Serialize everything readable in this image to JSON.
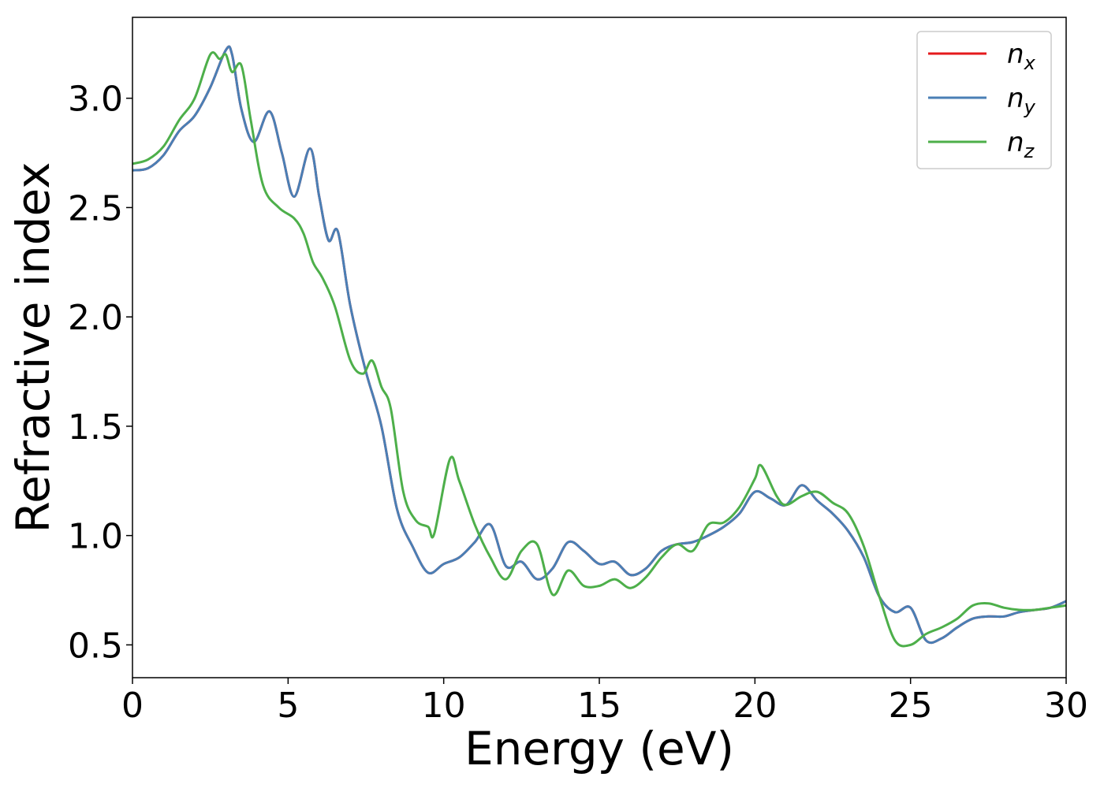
{
  "chart_data": {
    "type": "line",
    "xlabel": "Energy (eV)",
    "ylabel": "Refractive index",
    "xlim": [
      0,
      30
    ],
    "ylim": [
      0.35,
      3.37
    ],
    "xticks": [
      0,
      5,
      10,
      15,
      20,
      25,
      30
    ],
    "xtick_labels": [
      "0",
      "5",
      "10",
      "15",
      "20",
      "25",
      "30"
    ],
    "yticks": [
      0.5,
      1.0,
      1.5,
      2.0,
      2.5,
      3.0
    ],
    "ytick_labels": [
      "0.5",
      "1.0",
      "1.5",
      "2.0",
      "2.5",
      "3.0"
    ],
    "grid": false,
    "legend_position": "top-right",
    "series": [
      {
        "name": "n_x",
        "legend_base": "n",
        "legend_sub": "x",
        "color": "#e41a1c",
        "x": [
          0,
          0.5,
          1,
          1.5,
          2,
          2.5,
          3,
          3.2,
          3.5,
          3.9,
          4.4,
          4.8,
          5.2,
          5.7,
          6,
          6.3,
          6.6,
          7,
          7.5,
          8,
          8.5,
          9,
          9.5,
          10,
          10.5,
          11,
          11.5,
          12,
          12.5,
          13,
          13.5,
          14,
          14.5,
          15,
          15.5,
          16,
          16.5,
          17,
          17.5,
          18,
          18.5,
          19,
          19.5,
          20,
          20.5,
          21,
          21.5,
          22,
          22.5,
          23,
          23.5,
          24,
          24.5,
          25,
          25.5,
          26,
          26.5,
          27,
          27.5,
          28,
          28.5,
          29,
          29.5,
          30
        ],
        "y": [
          2.67,
          2.68,
          2.74,
          2.85,
          2.92,
          3.05,
          3.22,
          3.2,
          2.95,
          2.8,
          2.94,
          2.75,
          2.55,
          2.77,
          2.55,
          2.35,
          2.39,
          2.05,
          1.75,
          1.5,
          1.12,
          0.95,
          0.83,
          0.87,
          0.9,
          0.97,
          1.05,
          0.86,
          0.88,
          0.8,
          0.85,
          0.97,
          0.93,
          0.87,
          0.88,
          0.82,
          0.85,
          0.93,
          0.96,
          0.97,
          1.0,
          1.04,
          1.1,
          1.2,
          1.17,
          1.14,
          1.23,
          1.16,
          1.1,
          1.02,
          0.9,
          0.72,
          0.65,
          0.67,
          0.52,
          0.53,
          0.58,
          0.62,
          0.63,
          0.63,
          0.65,
          0.66,
          0.67,
          0.7
        ]
      },
      {
        "name": "n_y",
        "legend_base": "n",
        "legend_sub": "y",
        "color": "#4a7fb5",
        "x": [
          0,
          0.5,
          1,
          1.5,
          2,
          2.5,
          3,
          3.2,
          3.5,
          3.9,
          4.4,
          4.8,
          5.2,
          5.7,
          6,
          6.3,
          6.6,
          7,
          7.5,
          8,
          8.5,
          9,
          9.5,
          10,
          10.5,
          11,
          11.5,
          12,
          12.5,
          13,
          13.5,
          14,
          14.5,
          15,
          15.5,
          16,
          16.5,
          17,
          17.5,
          18,
          18.5,
          19,
          19.5,
          20,
          20.5,
          21,
          21.5,
          22,
          22.5,
          23,
          23.5,
          24,
          24.5,
          25,
          25.5,
          26,
          26.5,
          27,
          27.5,
          28,
          28.5,
          29,
          29.5,
          30
        ],
        "y": [
          2.67,
          2.68,
          2.74,
          2.85,
          2.92,
          3.05,
          3.22,
          3.2,
          2.95,
          2.8,
          2.94,
          2.75,
          2.55,
          2.77,
          2.55,
          2.35,
          2.39,
          2.05,
          1.75,
          1.5,
          1.12,
          0.95,
          0.83,
          0.87,
          0.9,
          0.97,
          1.05,
          0.86,
          0.88,
          0.8,
          0.85,
          0.97,
          0.93,
          0.87,
          0.88,
          0.82,
          0.85,
          0.93,
          0.96,
          0.97,
          1.0,
          1.04,
          1.1,
          1.2,
          1.17,
          1.14,
          1.23,
          1.16,
          1.1,
          1.02,
          0.9,
          0.72,
          0.65,
          0.67,
          0.52,
          0.53,
          0.58,
          0.62,
          0.63,
          0.63,
          0.65,
          0.66,
          0.67,
          0.7
        ]
      },
      {
        "name": "n_z",
        "legend_base": "n",
        "legend_sub": "z",
        "color": "#4daf4a",
        "x": [
          0,
          0.5,
          1,
          1.5,
          2,
          2.5,
          2.8,
          3,
          3.2,
          3.5,
          3.8,
          4.2,
          4.7,
          5.2,
          5.5,
          5.8,
          6.1,
          6.5,
          7,
          7.4,
          7.7,
          8,
          8.3,
          8.7,
          9.1,
          9.5,
          9.7,
          10.2,
          10.5,
          11,
          11.5,
          12,
          12.5,
          13,
          13.5,
          14,
          14.5,
          15,
          15.5,
          16,
          16.5,
          17,
          17.5,
          18,
          18.5,
          19,
          19.5,
          20,
          20.2,
          20.7,
          21,
          21.5,
          22,
          22.5,
          23,
          23.5,
          24,
          24.5,
          25,
          25.5,
          26,
          26.5,
          27,
          27.5,
          28,
          28.5,
          29,
          29.5,
          30
        ],
        "y": [
          2.7,
          2.72,
          2.78,
          2.9,
          3.0,
          3.2,
          3.18,
          3.2,
          3.12,
          3.15,
          2.9,
          2.6,
          2.5,
          2.45,
          2.38,
          2.25,
          2.18,
          2.05,
          1.8,
          1.74,
          1.8,
          1.68,
          1.58,
          1.2,
          1.07,
          1.04,
          1.01,
          1.35,
          1.25,
          1.05,
          0.9,
          0.8,
          0.93,
          0.96,
          0.73,
          0.84,
          0.77,
          0.77,
          0.8,
          0.76,
          0.81,
          0.9,
          0.96,
          0.93,
          1.05,
          1.06,
          1.13,
          1.26,
          1.32,
          1.18,
          1.14,
          1.18,
          1.2,
          1.15,
          1.1,
          0.95,
          0.72,
          0.52,
          0.5,
          0.55,
          0.58,
          0.62,
          0.68,
          0.69,
          0.67,
          0.66,
          0.66,
          0.67,
          0.68
        ]
      }
    ]
  }
}
